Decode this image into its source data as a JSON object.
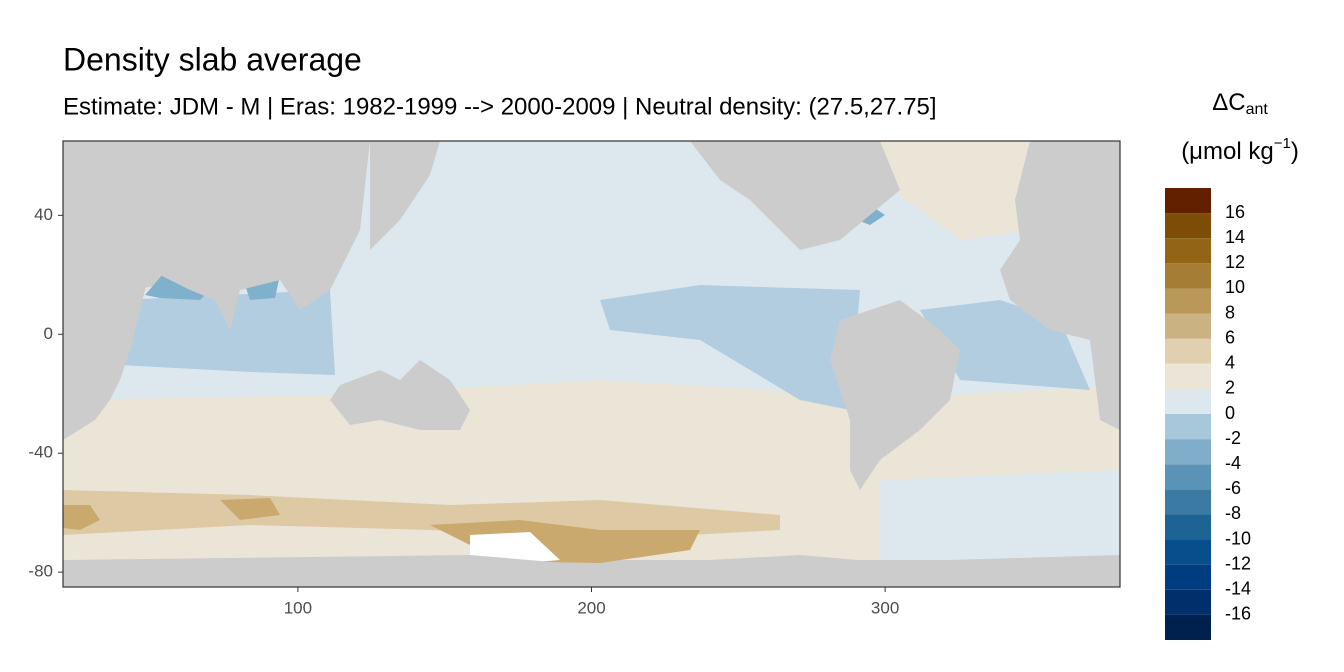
{
  "chart_data": {
    "type": "map",
    "title": "Density slab average",
    "subtitle": "Estimate: JDM - M | Eras: 1982-1999 --> 2000-2009 | Neutral density: (27.5,27.75]",
    "xlim": [
      20,
      380
    ],
    "xticks": [
      100,
      200,
      300
    ],
    "ylim": [
      -85,
      65
    ],
    "yticks": [
      -80,
      -40,
      0,
      40
    ],
    "legend": {
      "title": [
        "ΔC",
        "ant"
      ],
      "unit": [
        "(μmol kg",
        "−1",
        ")"
      ],
      "breaks": [
        -18,
        -16,
        -14,
        -12,
        -10,
        -8,
        -6,
        -4,
        -2,
        0,
        2,
        4,
        6,
        8,
        10,
        12,
        14,
        16,
        18
      ],
      "ticks": [
        -16,
        -14,
        -12,
        -10,
        -8,
        -6,
        -4,
        -2,
        0,
        2,
        4,
        6,
        8,
        10,
        12,
        14,
        16
      ],
      "colors": [
        "#00204d",
        "#002f6c",
        "#003d80",
        "#074f8c",
        "#1d6494",
        "#3b7ba3",
        "#5b93b6",
        "#80adc9",
        "#a7c8db",
        "#dde8ee",
        "#ebe5d8",
        "#e0d0b0",
        "#cbb282",
        "#b99859",
        "#a57d34",
        "#926516",
        "#7d4c07",
        "#632000"
      ]
    }
  }
}
